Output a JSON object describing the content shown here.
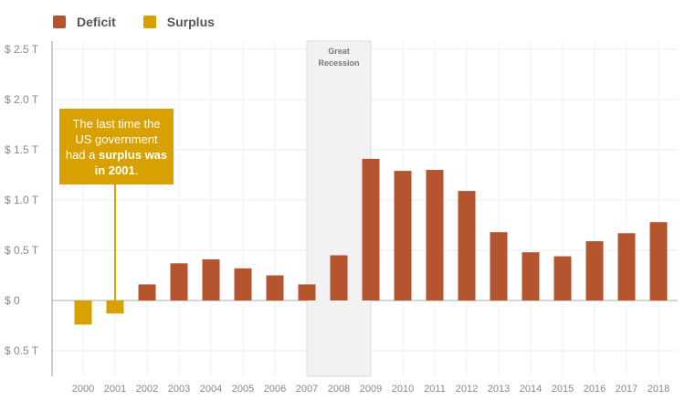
{
  "legend": {
    "deficit_label": "Deficit",
    "surplus_label": "Surplus",
    "deficit_color": "#b5552f",
    "surplus_color": "#d9a100"
  },
  "annotation": {
    "text_before": "The last time the US government had a ",
    "bold_text": "surplus was in 2001",
    "text_after": ".",
    "color": "#d9a100"
  },
  "shaded_region": {
    "label_line1": "Great",
    "label_line2": "Recession",
    "start": "2007",
    "end": "2009"
  },
  "chart_data": {
    "type": "bar",
    "title": "",
    "xlabel": "",
    "ylabel": "",
    "categories": [
      "2000",
      "2001",
      "2002",
      "2003",
      "2004",
      "2005",
      "2006",
      "2007",
      "2008",
      "2009",
      "2010",
      "2011",
      "2012",
      "2013",
      "2014",
      "2015",
      "2016",
      "2017",
      "2018"
    ],
    "values": [
      -0.24,
      -0.13,
      0.16,
      0.37,
      0.41,
      0.32,
      0.25,
      0.16,
      0.45,
      1.41,
      1.29,
      1.3,
      1.09,
      0.68,
      0.48,
      0.44,
      0.59,
      0.67,
      0.78
    ],
    "series_kind": [
      "surplus",
      "surplus",
      "deficit",
      "deficit",
      "deficit",
      "deficit",
      "deficit",
      "deficit",
      "deficit",
      "deficit",
      "deficit",
      "deficit",
      "deficit",
      "deficit",
      "deficit",
      "deficit",
      "deficit",
      "deficit",
      "deficit"
    ],
    "ylim": [
      -0.75,
      2.5
    ],
    "y_ticks": [
      2.5,
      2.0,
      1.5,
      1.0,
      0.5,
      0,
      -0.5
    ],
    "y_tick_labels": [
      "$ 2.5 T",
      "$ 2.0 T",
      "$ 1.5 T",
      "$ 1.0 T",
      "$ 0.5 T",
      "$ 0",
      "$ 0.5 T"
    ],
    "grid": true,
    "legend_position": "top-left"
  }
}
